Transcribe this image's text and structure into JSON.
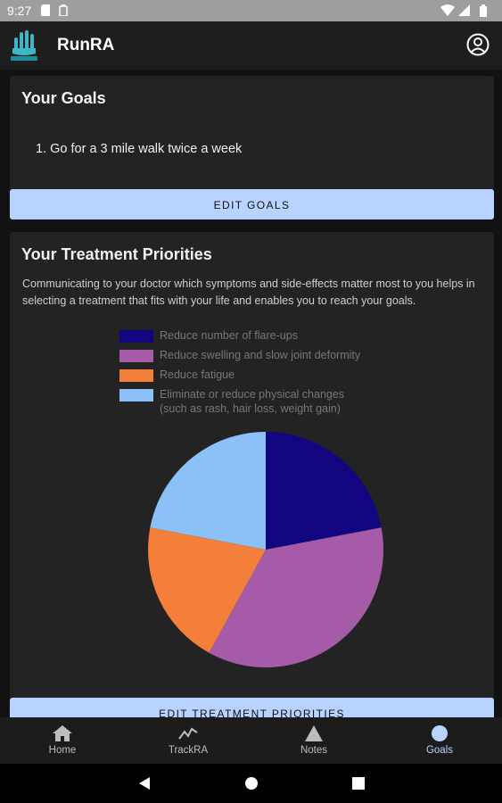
{
  "status_bar": {
    "time": "9:27"
  },
  "app": {
    "title": "RunRA"
  },
  "goals_card": {
    "heading": "Your Goals",
    "goals": [
      "1. Go for a 3 mile walk twice a week"
    ],
    "edit_button": "EDIT GOALS"
  },
  "priorities_card": {
    "heading": "Your Treatment Priorities",
    "description": "Communicating to your doctor which symptoms and side-effects matter most to you helps in selecting a treatment that fits with your life and enables you to reach your goals.",
    "legend": [
      {
        "label": "Reduce number of flare-ups",
        "color": "#11067f"
      },
      {
        "label": "Reduce swelling and slow joint deformity",
        "color": "#a65ba8"
      },
      {
        "label": "Reduce fatigue",
        "color": "#f47f3b"
      },
      {
        "label": "Eliminate or reduce physical changes",
        "label2": "(such as rash, hair loss, weight gain)",
        "color": "#8cc1f8"
      }
    ],
    "edit_button": "EDIT TREATMENT PRIORITIES"
  },
  "chart_data": {
    "type": "pie",
    "slices": [
      {
        "label": "Reduce number of flare-ups",
        "value": 22,
        "color": "#11067f"
      },
      {
        "label": "Reduce swelling and slow joint deformity",
        "value": 36,
        "color": "#a65ba8"
      },
      {
        "label": "Reduce fatigue",
        "value": 20,
        "color": "#f47f3b"
      },
      {
        "label": "Eliminate or reduce physical changes (such as rash, hair loss, weight gain)",
        "value": 22,
        "color": "#8cc1f8"
      }
    ],
    "legend_position": "top"
  },
  "bottom_nav": {
    "items": [
      {
        "label": "Home",
        "icon": "home-icon"
      },
      {
        "label": "TrackRA",
        "icon": "trend-icon"
      },
      {
        "label": "Notes",
        "icon": "triangle-icon"
      },
      {
        "label": "Goals",
        "icon": "circle-icon",
        "active": true
      }
    ]
  },
  "colors": {
    "accent": "#b8d3ff",
    "card": "#232323",
    "background": "#121212"
  }
}
